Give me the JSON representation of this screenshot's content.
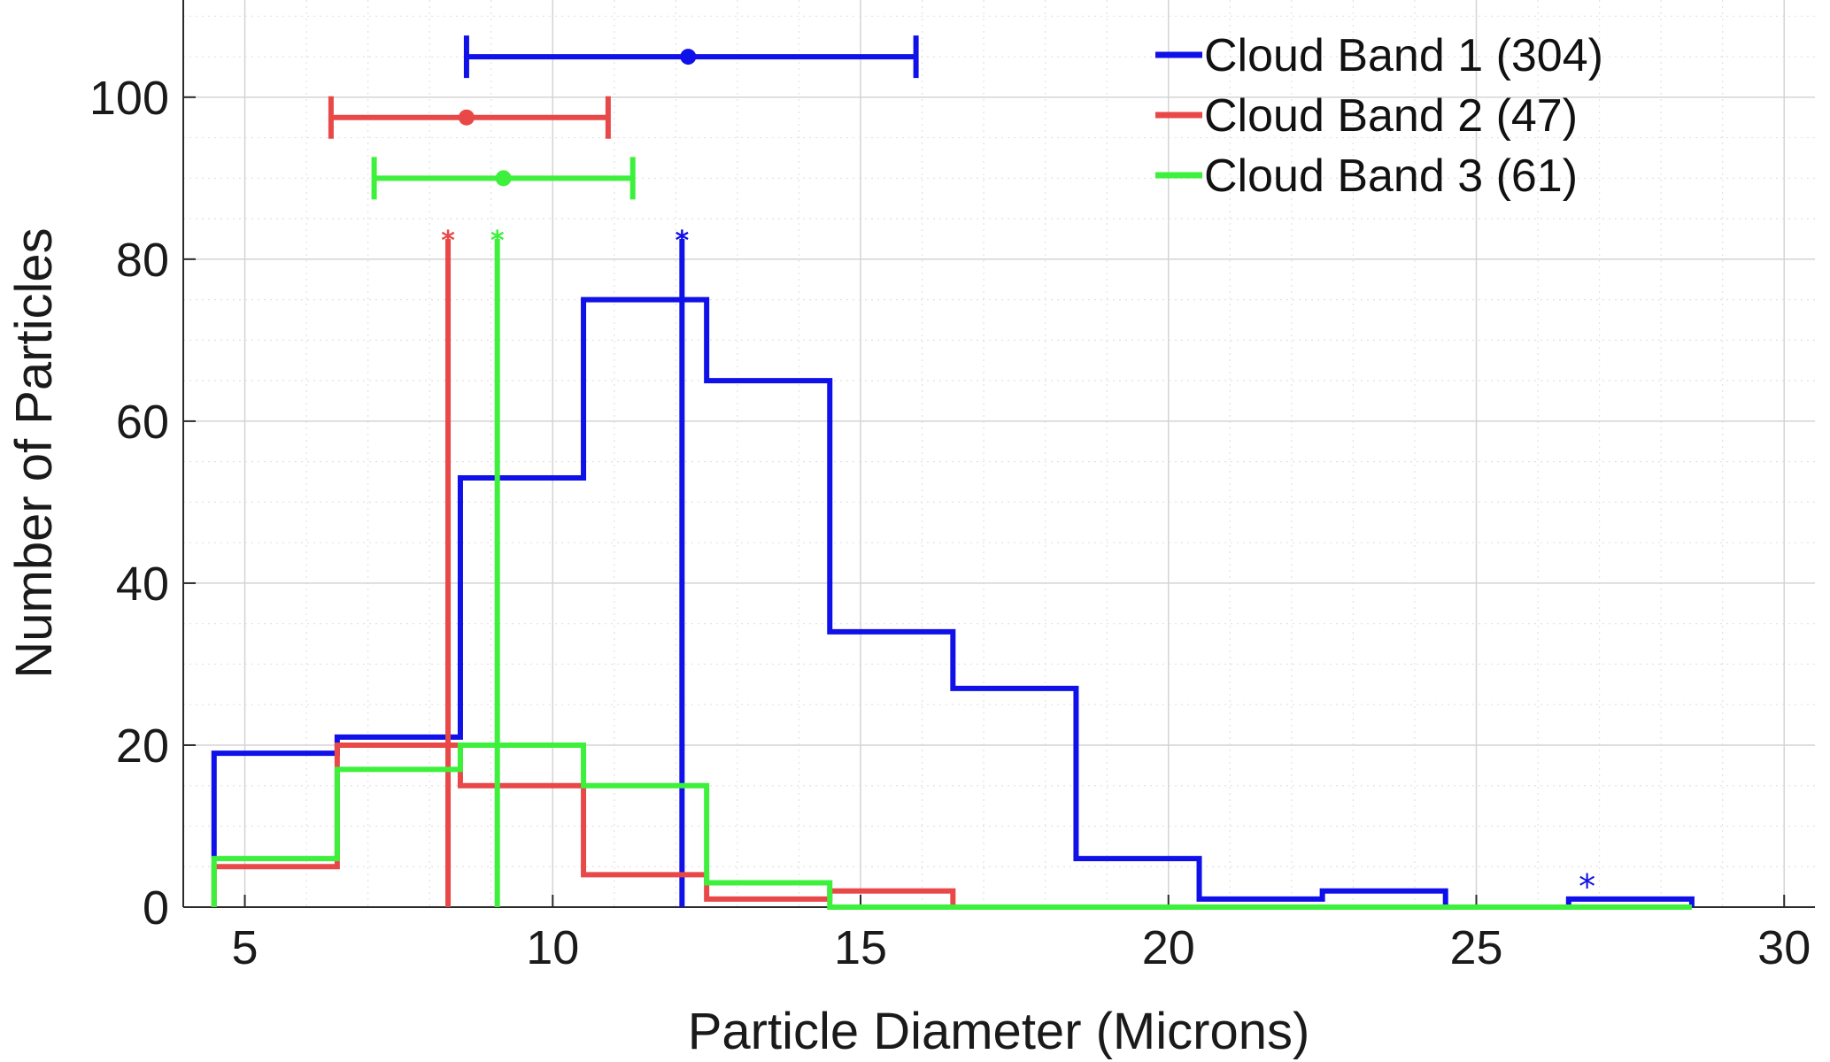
{
  "chart_data": {
    "type": "histogram",
    "xlabel": "Particle Diameter (Microns)",
    "ylabel": "Number of Particles",
    "xlim": [
      4,
      30.5
    ],
    "ylim": [
      0,
      112
    ],
    "xticks": [
      5,
      10,
      15,
      20,
      25,
      30
    ],
    "yticks": [
      0,
      20,
      40,
      60,
      80,
      100
    ],
    "grid": "on (major and minor, dotted)",
    "legend_position": "top-right",
    "legend": [
      {
        "label": "Cloud Band 1 (304)",
        "color": "#1010e8"
      },
      {
        "label": "Cloud Band 2 (47)",
        "color": "#e84848"
      },
      {
        "label": "Cloud Band 3 (61)",
        "color": "#3cf03c"
      }
    ],
    "series": [
      {
        "color": "#1010e8",
        "bin_edges": [
          4.5,
          6.5,
          8.5,
          10.5,
          12.5,
          14.5,
          16.5,
          18.5,
          20.5,
          22.5,
          24.5,
          26.5,
          28.5
        ],
        "counts": [
          19,
          21,
          53,
          75,
          65,
          34,
          27,
          6,
          1,
          2,
          0,
          1
        ],
        "first_edge_base": 6,
        "median_line": {
          "x": 12.1,
          "top": 82.5
        },
        "errorbar": {
          "y": 105,
          "mean": 12.2,
          "low": 8.6,
          "high": 15.9
        },
        "outlier_marker": {
          "x": 26.8,
          "y": 3.5
        }
      },
      {
        "color": "#e84848",
        "bin_edges": [
          4.5,
          6.5,
          8.5,
          10.5,
          12.5,
          14.5,
          16.5
        ],
        "counts": [
          5,
          20,
          15,
          4,
          1,
          2
        ],
        "median_line": {
          "x": 8.3,
          "top": 82.5
        },
        "errorbar": {
          "y": 97.5,
          "mean": 8.6,
          "low": 6.4,
          "high": 10.9
        }
      },
      {
        "color": "#3cf03c",
        "bin_edges": [
          4.5,
          6.5,
          8.5,
          10.5,
          12.5,
          14.5,
          16.5,
          18.5,
          20.5,
          22.5,
          24.5,
          26.5,
          28.5
        ],
        "counts": [
          6,
          17,
          20,
          15,
          3,
          0,
          0,
          0,
          0,
          0,
          0,
          0
        ],
        "first_edge_base": 0,
        "median_line": {
          "x": 9.1,
          "top": 82.5
        },
        "errorbar": {
          "y": 90,
          "mean": 9.2,
          "low": 7.1,
          "high": 11.3
        }
      }
    ]
  }
}
